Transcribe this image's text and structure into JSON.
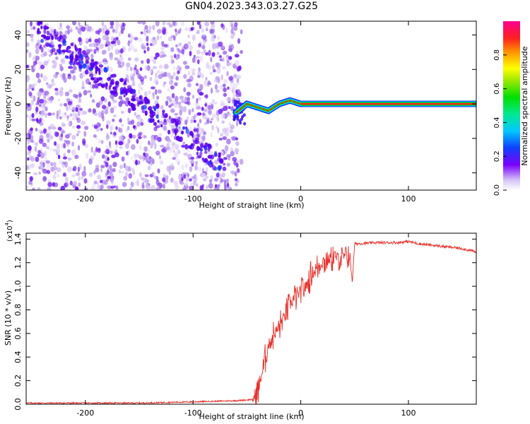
{
  "title": "GN04.2023.343.03.27.G25",
  "chart_data": [
    {
      "type": "heatmap",
      "xlabel": "Height of straight line (km)",
      "ylabel": "Frequency (Hz)",
      "xlim": [
        -255,
        163
      ],
      "ylim": [
        -50,
        48
      ],
      "xticks": [
        -200,
        -100,
        0,
        100
      ],
      "yticks": [
        -40,
        -20,
        0,
        20,
        40
      ],
      "colorbar": {
        "label": "Normalized spectral amplitude",
        "range": [
          0,
          1
        ],
        "ticks": [
          0.0,
          0.2,
          0.4,
          0.6,
          0.8
        ]
      },
      "features": {
        "noise_region_x": [
          -255,
          -55
        ],
        "diagonal_streak": {
          "x": [
            -245,
            -70
          ],
          "y": [
            44,
            -36
          ]
        },
        "wavy_track": {
          "x": [
            -60,
            -50,
            -40,
            -30,
            -20,
            -10,
            0
          ],
          "y": [
            -5,
            0,
            -2,
            -4,
            0,
            2,
            0
          ]
        },
        "flat_line": {
          "x": [
            0,
            163
          ],
          "y": 0
        }
      }
    },
    {
      "type": "line",
      "xlabel": "Height of straight line (km)",
      "ylabel": "SNR (10 * v/v)",
      "y_multiplier": "(x10",
      "y_multiplier_exp": "4",
      "y_multiplier_close": ")",
      "xlim": [
        -255,
        163
      ],
      "ylim": [
        0,
        1.45
      ],
      "xticks": [
        -200,
        -100,
        0,
        100
      ],
      "yticks": [
        0.0,
        0.2,
        0.4,
        0.6,
        0.8,
        1.0,
        1.2,
        1.4
      ],
      "series": [
        {
          "color": "#e8302a",
          "x": [
            -255,
            -200,
            -150,
            -100,
            -60,
            -45,
            -40,
            -35,
            -30,
            -25,
            -20,
            -15,
            -10,
            -5,
            0,
            5,
            10,
            15,
            20,
            25,
            30,
            35,
            40,
            45,
            48,
            50,
            70,
            90,
            100,
            110,
            130,
            150,
            163
          ],
          "y": [
            0.01,
            0.01,
            0.01,
            0.02,
            0.03,
            0.04,
            0.1,
            0.3,
            0.5,
            0.6,
            0.65,
            0.75,
            0.85,
            0.9,
            0.95,
            1.0,
            1.1,
            1.15,
            1.2,
            1.22,
            1.25,
            1.24,
            1.25,
            1.28,
            1.05,
            1.36,
            1.37,
            1.37,
            1.38,
            1.36,
            1.34,
            1.32,
            1.29
          ]
        }
      ]
    }
  ]
}
